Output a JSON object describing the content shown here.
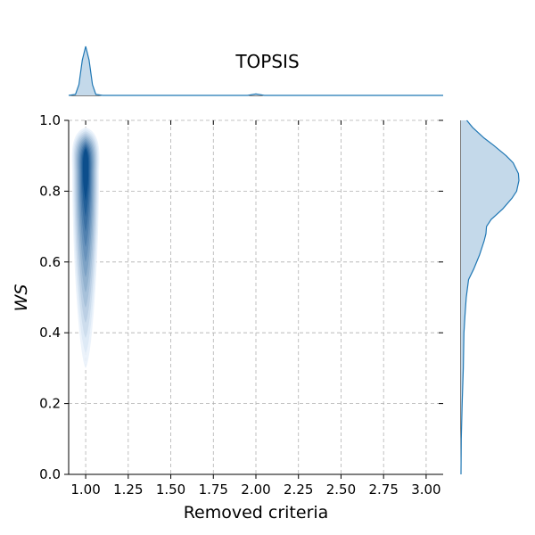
{
  "chart_data": {
    "type": "kde-jointplot",
    "title": "TOPSIS",
    "xlabel": "Removed criteria",
    "ylabel": "WS",
    "xlim": [
      0.9,
      3.1
    ],
    "ylim": [
      0.0,
      1.0
    ],
    "x_ticks": [
      "1.00",
      "1.25",
      "1.50",
      "1.75",
      "2.00",
      "2.25",
      "2.50",
      "2.75",
      "3.00"
    ],
    "y_ticks": [
      "0.0",
      "0.2",
      "0.4",
      "0.6",
      "0.8",
      "1.0"
    ],
    "grid": true,
    "colors": {
      "marginal_fill": "#c4d9ea",
      "marginal_line": "#1f77b4",
      "contour_light": "#eaf2fb",
      "contour_dark": "#084b8a"
    },
    "joint_density": {
      "center_x": 1.0,
      "center_y": 0.85,
      "y_extent": [
        0.3,
        0.98
      ]
    },
    "marginal_x": {
      "x": [
        0.9,
        0.94,
        0.96,
        0.98,
        1.0,
        1.02,
        1.04,
        1.06,
        1.1,
        1.5,
        1.95,
        2.0,
        2.05,
        2.5,
        3.0,
        3.1
      ],
      "density": [
        0.0,
        0.02,
        0.22,
        0.72,
        1.0,
        0.72,
        0.22,
        0.02,
        0.0,
        0.0,
        0.0,
        0.03,
        0.0,
        0.0,
        0.0,
        0.0
      ]
    },
    "marginal_y": {
      "y": [
        0.0,
        0.1,
        0.2,
        0.3,
        0.4,
        0.45,
        0.5,
        0.55,
        0.58,
        0.62,
        0.66,
        0.68,
        0.7,
        0.72,
        0.75,
        0.78,
        0.8,
        0.83,
        0.85,
        0.88,
        0.9,
        0.93,
        0.95,
        0.98,
        1.0
      ],
      "density": [
        0.0,
        0.005,
        0.02,
        0.04,
        0.05,
        0.07,
        0.09,
        0.13,
        0.22,
        0.32,
        0.4,
        0.43,
        0.44,
        0.52,
        0.72,
        0.88,
        0.96,
        1.0,
        0.99,
        0.9,
        0.78,
        0.56,
        0.4,
        0.2,
        0.1
      ]
    }
  }
}
